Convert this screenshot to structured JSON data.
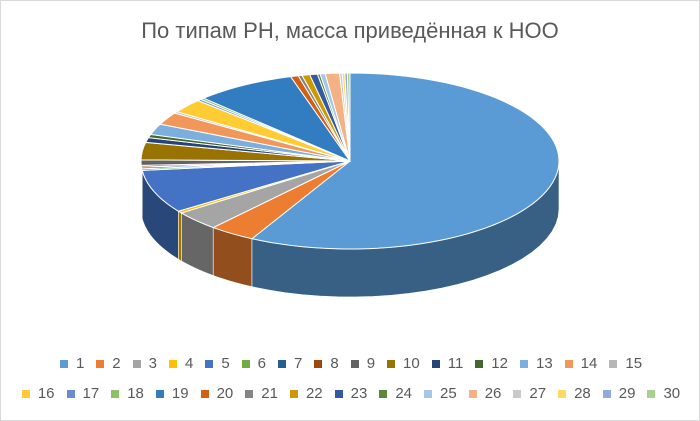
{
  "chart_data": {
    "type": "pie",
    "title": "По типам РН, масса приведённая к НОО",
    "legend_position": "bottom",
    "categories": [
      "1",
      "2",
      "3",
      "4",
      "5",
      "6",
      "7",
      "8",
      "9",
      "10",
      "11",
      "12",
      "13",
      "14",
      "15",
      "16",
      "17",
      "18",
      "19",
      "20",
      "21",
      "22",
      "23",
      "24",
      "25",
      "26",
      "27",
      "28",
      "29",
      "30"
    ],
    "values": [
      58.0,
      3.6,
      3.6,
      0.4,
      8.0,
      0.3,
      0.3,
      0.3,
      1.0,
      3.2,
      0.9,
      0.6,
      2.0,
      2.3,
      0.3,
      2.6,
      0.3,
      0.3,
      7.8,
      0.6,
      0.3,
      0.6,
      0.6,
      0.2,
      0.4,
      1.1,
      0.2,
      0.2,
      0.2,
      0.2
    ],
    "colors": [
      "#5B9BD5",
      "#ED7D31",
      "#A5A5A5",
      "#FFC000",
      "#4472C4",
      "#70AD47",
      "#255E91",
      "#9E480E",
      "#636363",
      "#997300",
      "#264478",
      "#43682B",
      "#7CAFDD",
      "#F1975A",
      "#B7B7B7",
      "#FFCD33",
      "#698ED0",
      "#8CC168",
      "#327DC2",
      "#D26012",
      "#848484",
      "#CC9A00",
      "#335AA1",
      "#5A8A39",
      "#A3C7E7",
      "#F4B183",
      "#C9C9C9",
      "#FFD966",
      "#8FAADC",
      "#A9D18E"
    ]
  }
}
